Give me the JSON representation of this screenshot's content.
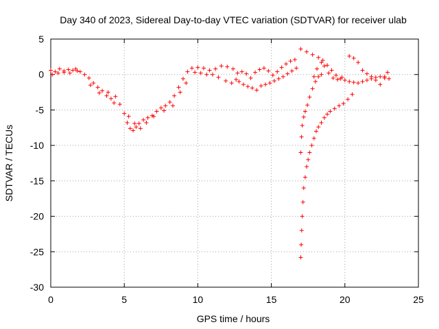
{
  "chart_data": {
    "type": "scatter",
    "title": "Day 340 of 2023, Sidereal Day-to-day VTEC variation (SDTVAR) for receiver ulab",
    "xlabel": "GPS time / hours",
    "ylabel": "SDTVAR / TECUs",
    "xlim": [
      0,
      25
    ],
    "ylim": [
      -30,
      5
    ],
    "xticks": [
      0,
      5,
      10,
      15,
      20,
      25
    ],
    "yticks": [
      5,
      0,
      -5,
      -10,
      -15,
      -20,
      -25,
      -30
    ],
    "xtick_labels": [
      "0",
      "5",
      "10",
      "15",
      "20",
      "25"
    ],
    "ytick_labels": [
      "5",
      "0",
      "-5",
      "-10",
      "-15",
      "-20",
      "-25",
      "-30"
    ],
    "grid": true,
    "marker": "+",
    "color": "#ff0000",
    "series": [
      {
        "name": "main",
        "points": [
          [
            0.0,
            0.6
          ],
          [
            0.3,
            0.4
          ],
          [
            0.6,
            0.8
          ],
          [
            0.9,
            0.5
          ],
          [
            1.2,
            0.7
          ],
          [
            1.5,
            0.6
          ],
          [
            1.8,
            0.5
          ],
          [
            2.0,
            0.4
          ],
          [
            2.3,
            0.0
          ],
          [
            2.6,
            -0.5
          ],
          [
            2.9,
            -1.2
          ],
          [
            3.2,
            -1.8
          ],
          [
            3.5,
            -2.3
          ],
          [
            3.8,
            -3.0
          ],
          [
            4.1,
            -3.4
          ],
          [
            4.4,
            -3.1
          ],
          [
            4.7,
            -4.2
          ],
          [
            5.0,
            -5.5
          ],
          [
            5.2,
            -6.8
          ],
          [
            5.4,
            -7.6
          ],
          [
            5.6,
            -7.9
          ],
          [
            5.8,
            -7.4
          ],
          [
            6.0,
            -6.9
          ],
          [
            6.3,
            -6.4
          ],
          [
            6.6,
            -6.1
          ],
          [
            6.9,
            -5.8
          ],
          [
            7.2,
            -5.2
          ],
          [
            7.5,
            -4.7
          ],
          [
            7.8,
            -4.4
          ],
          [
            8.1,
            -3.9
          ],
          [
            8.4,
            -3.0
          ],
          [
            8.7,
            -1.8
          ],
          [
            9.0,
            -0.6
          ],
          [
            9.3,
            0.4
          ],
          [
            9.6,
            0.9
          ],
          [
            10.0,
            1.0
          ],
          [
            10.4,
            0.9
          ],
          [
            10.8,
            0.6
          ],
          [
            11.2,
            0.8
          ],
          [
            11.6,
            1.2
          ],
          [
            12.0,
            1.1
          ],
          [
            12.4,
            0.8
          ],
          [
            12.7,
            0.2
          ]
        ]
      },
      {
        "name": "main-spread",
        "points": [
          [
            0.1,
            0.0
          ],
          [
            0.5,
            0.2
          ],
          [
            0.9,
            0.3
          ],
          [
            1.3,
            0.2
          ],
          [
            1.7,
            0.8
          ],
          [
            2.7,
            -1.5
          ],
          [
            3.3,
            -2.6
          ],
          [
            3.9,
            -2.5
          ],
          [
            4.3,
            -4.0
          ],
          [
            5.3,
            -5.9
          ],
          [
            5.7,
            -6.9
          ],
          [
            6.1,
            -7.6
          ],
          [
            6.5,
            -6.8
          ],
          [
            7.0,
            -5.9
          ],
          [
            7.7,
            -5.1
          ],
          [
            8.3,
            -4.4
          ],
          [
            8.8,
            -2.5
          ],
          [
            9.2,
            -1.2
          ],
          [
            9.8,
            0.3
          ],
          [
            10.2,
            0.2
          ],
          [
            10.6,
            0.0
          ],
          [
            11.0,
            0.0
          ],
          [
            11.4,
            -0.4
          ],
          [
            11.9,
            -0.9
          ],
          [
            12.3,
            -1.2
          ],
          [
            12.6,
            -0.7
          ]
        ]
      },
      {
        "name": "evening",
        "points": [
          [
            12.8,
            -1.0
          ],
          [
            13.1,
            -1.4
          ],
          [
            13.4,
            -1.7
          ],
          [
            13.7,
            -1.9
          ],
          [
            14.0,
            -2.2
          ],
          [
            14.3,
            -1.6
          ],
          [
            14.6,
            -1.4
          ],
          [
            14.9,
            -1.2
          ],
          [
            15.2,
            -0.9
          ],
          [
            15.5,
            -0.6
          ],
          [
            15.8,
            -0.3
          ],
          [
            16.1,
            0.1
          ],
          [
            16.4,
            0.5
          ],
          [
            16.7,
            0.9
          ],
          [
            13.0,
            0.4
          ],
          [
            13.3,
            0.1
          ],
          [
            13.6,
            -0.5
          ],
          [
            13.9,
            0.3
          ],
          [
            14.2,
            0.7
          ],
          [
            14.5,
            0.9
          ],
          [
            14.8,
            0.5
          ],
          [
            15.1,
            -0.1
          ],
          [
            15.4,
            0.4
          ],
          [
            15.7,
            1.0
          ],
          [
            16.0,
            1.5
          ],
          [
            16.3,
            1.9
          ],
          [
            16.6,
            2.1
          ]
        ]
      },
      {
        "name": "arc-upper",
        "points": [
          [
            17.0,
            3.6
          ],
          [
            17.4,
            3.2
          ],
          [
            17.8,
            2.8
          ],
          [
            18.2,
            2.4
          ],
          [
            18.5,
            2.0
          ],
          [
            18.8,
            1.3
          ],
          [
            19.1,
            0.6
          ],
          [
            19.4,
            -0.1
          ],
          [
            19.7,
            -0.6
          ],
          [
            20.0,
            -0.8
          ],
          [
            20.3,
            -1.0
          ],
          [
            20.6,
            -1.1
          ],
          [
            20.9,
            -1.2
          ],
          [
            21.2,
            -1.0
          ],
          [
            21.5,
            -0.8
          ],
          [
            21.8,
            -0.6
          ],
          [
            22.1,
            -0.4
          ],
          [
            22.4,
            -0.3
          ],
          [
            22.7,
            -0.5
          ],
          [
            23.0,
            -0.6
          ],
          [
            17.9,
            -0.3
          ],
          [
            18.1,
            0.8
          ],
          [
            18.4,
            1.7
          ],
          [
            18.6,
            1.2
          ],
          [
            18.9,
            0.2
          ],
          [
            19.2,
            -0.5
          ],
          [
            19.5,
            -0.7
          ],
          [
            19.8,
            -0.4
          ],
          [
            20.3,
            2.6
          ],
          [
            20.6,
            2.3
          ],
          [
            20.9,
            1.7
          ],
          [
            21.2,
            0.6
          ],
          [
            21.5,
            0.1
          ],
          [
            21.8,
            -0.3
          ],
          [
            22.1,
            -0.8
          ],
          [
            22.4,
            -1.4
          ],
          [
            22.7,
            -0.3
          ],
          [
            22.9,
            0.3
          ]
        ]
      },
      {
        "name": "dip-1",
        "points": [
          [
            17.0,
            -11.0
          ],
          [
            17.05,
            -8.8
          ],
          [
            17.1,
            -7.2
          ],
          [
            17.2,
            -6.0
          ],
          [
            17.3,
            -5.2
          ],
          [
            17.45,
            -4.3
          ],
          [
            17.6,
            -3.2
          ],
          [
            17.8,
            -2.0
          ],
          [
            18.0,
            -1.0
          ],
          [
            18.2,
            -0.3
          ],
          [
            18.4,
            0.0
          ]
        ]
      },
      {
        "name": "dip-2",
        "points": [
          [
            17.0,
            -25.8
          ],
          [
            17.03,
            -24.0
          ],
          [
            17.06,
            -22.0
          ],
          [
            17.1,
            -20.0
          ],
          [
            17.15,
            -18.0
          ],
          [
            17.2,
            -16.0
          ],
          [
            17.3,
            -14.5
          ],
          [
            17.4,
            -13.0
          ],
          [
            17.5,
            -12.0
          ],
          [
            17.6,
            -11.0
          ],
          [
            17.75,
            -10.0
          ],
          [
            17.9,
            -9.0
          ],
          [
            18.05,
            -8.0
          ],
          [
            18.2,
            -7.4
          ],
          [
            18.4,
            -6.8
          ],
          [
            18.6,
            -6.1
          ],
          [
            18.8,
            -5.6
          ],
          [
            19.0,
            -5.2
          ],
          [
            19.3,
            -4.8
          ],
          [
            19.6,
            -4.4
          ],
          [
            19.9,
            -4.1
          ],
          [
            20.2,
            -3.5
          ],
          [
            20.5,
            -2.8
          ]
        ]
      }
    ]
  }
}
